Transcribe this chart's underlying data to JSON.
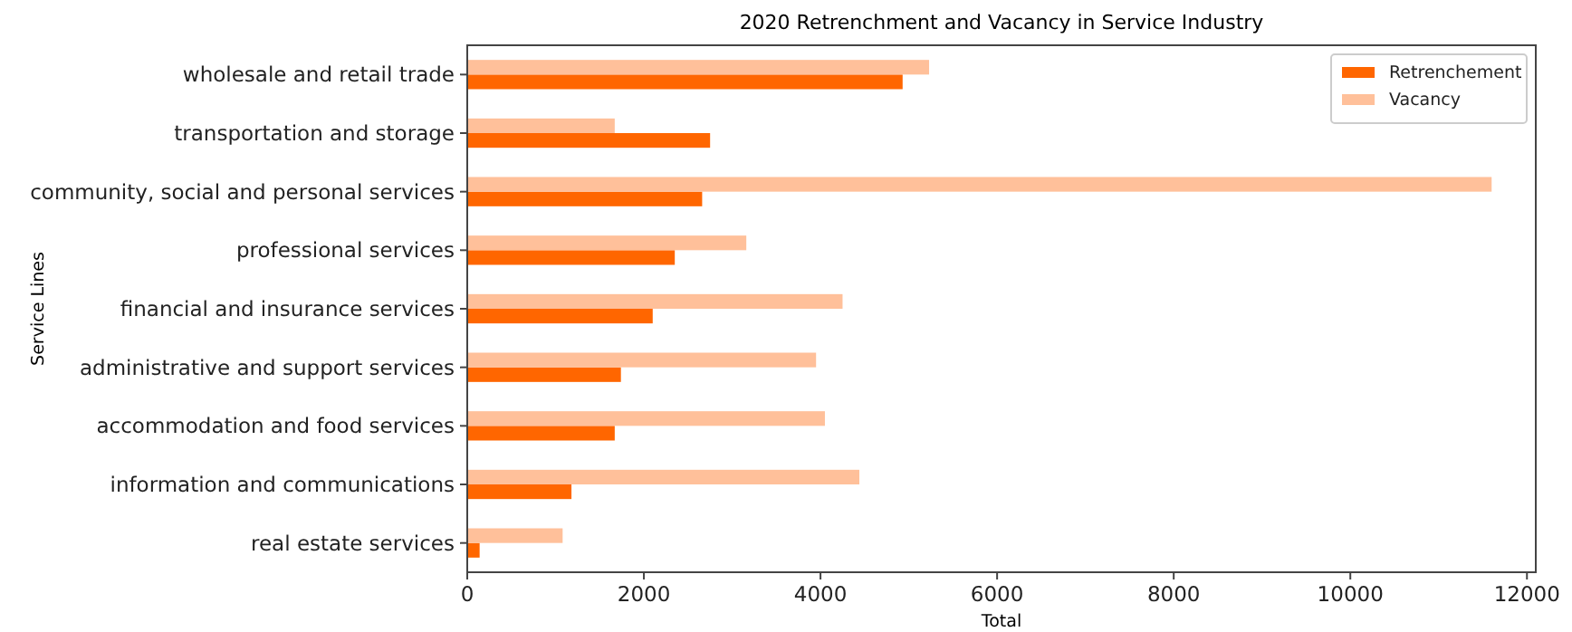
{
  "chart_data": {
    "type": "bar",
    "orientation": "horizontal",
    "title": "2020 Retrenchment and Vacancy in Service Industry",
    "xlabel": "Total",
    "ylabel": "Service Lines",
    "categories": [
      "wholesale and retail trade",
      "transportation and storage",
      "community, social and personal services",
      "professional services",
      "financial and insurance services",
      "administrative and support services",
      "accommodation and food services",
      "information and communications",
      "real estate services"
    ],
    "series": [
      {
        "name": "Retrenchement",
        "color": "#ff6600",
        "values": [
          4930,
          2750,
          2660,
          2350,
          2100,
          1740,
          1670,
          1180,
          140
        ]
      },
      {
        "name": "Vacancy",
        "color": "#ffc09a",
        "values": [
          5230,
          1670,
          11600,
          3160,
          4250,
          3950,
          4050,
          4440,
          1080
        ]
      }
    ],
    "xlim": [
      0,
      12100
    ],
    "xticks": [
      0,
      2000,
      4000,
      6000,
      8000,
      10000,
      12000
    ],
    "legend": "top right",
    "grid": false
  }
}
